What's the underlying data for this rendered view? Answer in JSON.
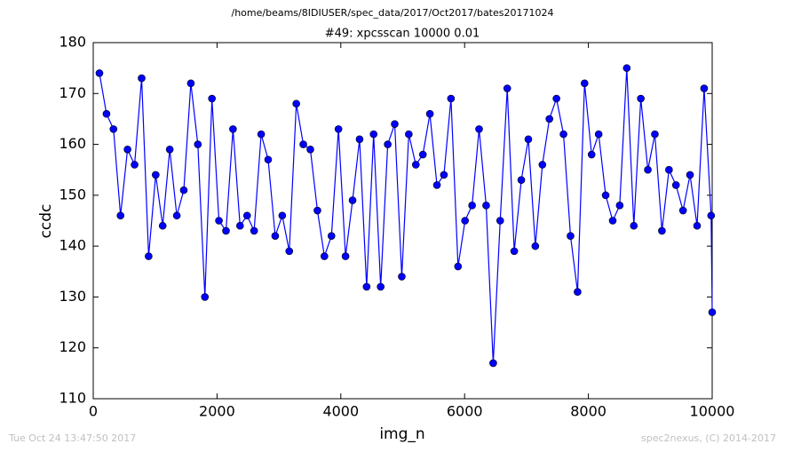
{
  "chart_data": {
    "type": "line",
    "suptitle": "/home/beams/8IDIUSER/spec_data/2017/Oct2017/bates20171024",
    "title": "#49: xpcsscan 10000 0.01",
    "xlabel": "img_n",
    "ylabel": "ccdc",
    "timestamp": "Tue Oct 24 13:47:50 2017",
    "credit": "spec2nexus, (C) 2014-2017",
    "x": [
      100,
      214,
      327,
      441,
      554,
      668,
      782,
      895,
      1009,
      1122,
      1236,
      1350,
      1463,
      1577,
      1690,
      1804,
      1918,
      2031,
      2145,
      2258,
      2372,
      2486,
      2599,
      2713,
      2826,
      2940,
      3054,
      3167,
      3281,
      3394,
      3508,
      3622,
      3735,
      3849,
      3962,
      4076,
      4190,
      4303,
      4417,
      4530,
      4644,
      4758,
      4871,
      4985,
      5098,
      5212,
      5326,
      5439,
      5553,
      5666,
      5780,
      5894,
      6007,
      6121,
      6234,
      6348,
      6462,
      6575,
      6689,
      6802,
      6916,
      7030,
      7143,
      7257,
      7370,
      7484,
      7598,
      7711,
      7825,
      7938,
      8052,
      8166,
      8279,
      8393,
      8506,
      8620,
      8734,
      8847,
      8961,
      9074,
      9188,
      9302,
      9415,
      9529,
      9642,
      9756,
      9870,
      9983,
      10000
    ],
    "series": [
      {
        "name": "ccdc",
        "color": "#0000ff",
        "values": [
          174,
          166,
          163,
          146,
          159,
          156,
          173,
          138,
          154,
          144,
          159,
          146,
          151,
          172,
          160,
          130,
          169,
          145,
          143,
          163,
          144,
          146,
          143,
          162,
          157,
          142,
          146,
          139,
          168,
          160,
          159,
          147,
          138,
          142,
          163,
          138,
          149,
          161,
          132,
          162,
          132,
          160,
          164,
          134,
          162,
          156,
          158,
          166,
          152,
          154,
          169,
          136,
          145,
          148,
          163,
          148,
          117,
          145,
          171,
          139,
          153,
          161,
          140,
          156,
          165,
          169,
          162,
          142,
          131,
          172,
          158,
          162,
          150,
          145,
          148,
          175,
          144,
          169,
          155,
          162,
          143,
          155,
          152,
          147,
          154,
          144,
          171,
          146,
          127
        ]
      }
    ],
    "xlim": [
      0,
      10000
    ],
    "ylim": [
      110,
      180
    ],
    "xticks": [
      0,
      2000,
      4000,
      6000,
      8000,
      10000
    ],
    "yticks": [
      110,
      120,
      130,
      140,
      150,
      160,
      170,
      180
    ],
    "grid": false
  }
}
